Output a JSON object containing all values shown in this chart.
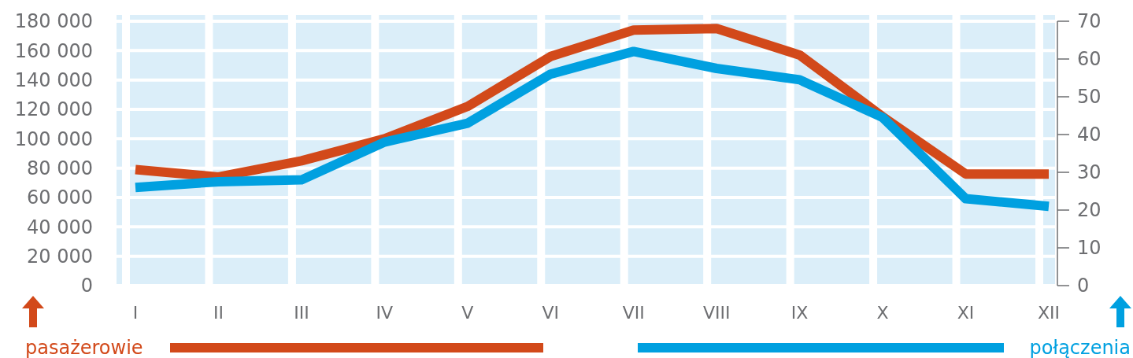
{
  "chart_data": {
    "type": "line",
    "categories": [
      "I",
      "II",
      "III",
      "IV",
      "V",
      "VI",
      "VII",
      "VIII",
      "IX",
      "X",
      "XI",
      "XII"
    ],
    "series": [
      {
        "name": "pasażerowie",
        "color": "#d2491a",
        "values": [
          79000,
          74000,
          85000,
          100000,
          122000,
          156000,
          174000,
          175000,
          157000,
          115000,
          76000,
          76000
        ]
      },
      {
        "name": "połączenia",
        "color": "#00a0e0",
        "axis": "y2",
        "values": [
          26,
          27.5,
          28,
          38,
          43,
          56,
          62,
          57.5,
          54.5,
          44.5,
          23,
          21
        ]
      }
    ],
    "ylim": [
      0,
      180000
    ],
    "yticks": [
      0,
      {
        "value": 20000,
        "label": "20 000"
      },
      {
        "value": 40000,
        "label": "40 000"
      },
      {
        "value": 60000,
        "label": "60 000"
      },
      {
        "value": 80000,
        "label": "80 000"
      },
      {
        "value": 100000,
        "label": "100 000"
      },
      {
        "value": 120000,
        "label": "120 000"
      },
      {
        "value": 140000,
        "label": "140 000"
      },
      {
        "value": 160000,
        "label": "160 000"
      },
      {
        "value": 180000,
        "label": "180 000"
      }
    ],
    "y2lim": [
      0,
      70
    ],
    "y2ticks": [
      0,
      10,
      20,
      30,
      40,
      50,
      60,
      70
    ],
    "grid": true,
    "legend": "bottom",
    "marker": "none",
    "line_style": "solid"
  }
}
